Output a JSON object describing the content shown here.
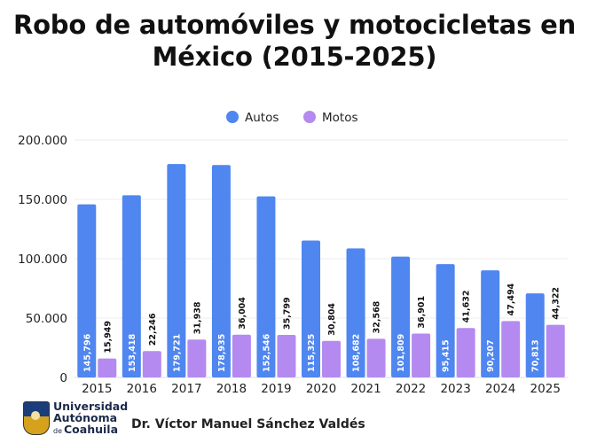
{
  "title": {
    "line1": "Robo de automóviles y motocicletas en",
    "line2": "México (2015-2025)"
  },
  "colors": {
    "autos": "#4f86f0",
    "motos": "#b48af0",
    "grid": "#eeeeee",
    "text": "#222222"
  },
  "chart_data": {
    "type": "bar",
    "categories": [
      "2015",
      "2016",
      "2017",
      "2018",
      "2019",
      "2020",
      "2021",
      "2022",
      "2023",
      "2024",
      "2025"
    ],
    "series": [
      {
        "name": "Autos",
        "values": [
          145796,
          153418,
          179721,
          178935,
          152546,
          115325,
          108682,
          101809,
          95415,
          90207,
          70813
        ],
        "labels": [
          "145,796",
          "153,418",
          "179,721",
          "178,935",
          "152,546",
          "115,325",
          "108,682",
          "101,809",
          "95,415",
          "90,207",
          "70,813"
        ]
      },
      {
        "name": "Motos",
        "values": [
          15949,
          22246,
          31938,
          36004,
          35799,
          30804,
          32568,
          36901,
          41632,
          47494,
          44322
        ],
        "labels": [
          "15,949",
          "22,246",
          "31,938",
          "36,004",
          "35,799",
          "30,804",
          "32,568",
          "36,901",
          "41,632",
          "47,494",
          "44,322"
        ]
      }
    ],
    "y_ticks": [
      0,
      50000,
      100000,
      150000,
      200000
    ],
    "y_tick_labels": [
      "0",
      "50.000",
      "100.000",
      "150.000",
      "200.000"
    ],
    "ylim": [
      0,
      200000
    ],
    "legend_position": "top-center",
    "grid": true
  },
  "footer": {
    "logo_line1": "Universidad",
    "logo_line2": "Autónoma",
    "logo_line3_small": "de",
    "logo_line3": "Coahuila",
    "author": "Dr. Víctor Manuel Sánchez Valdés"
  }
}
